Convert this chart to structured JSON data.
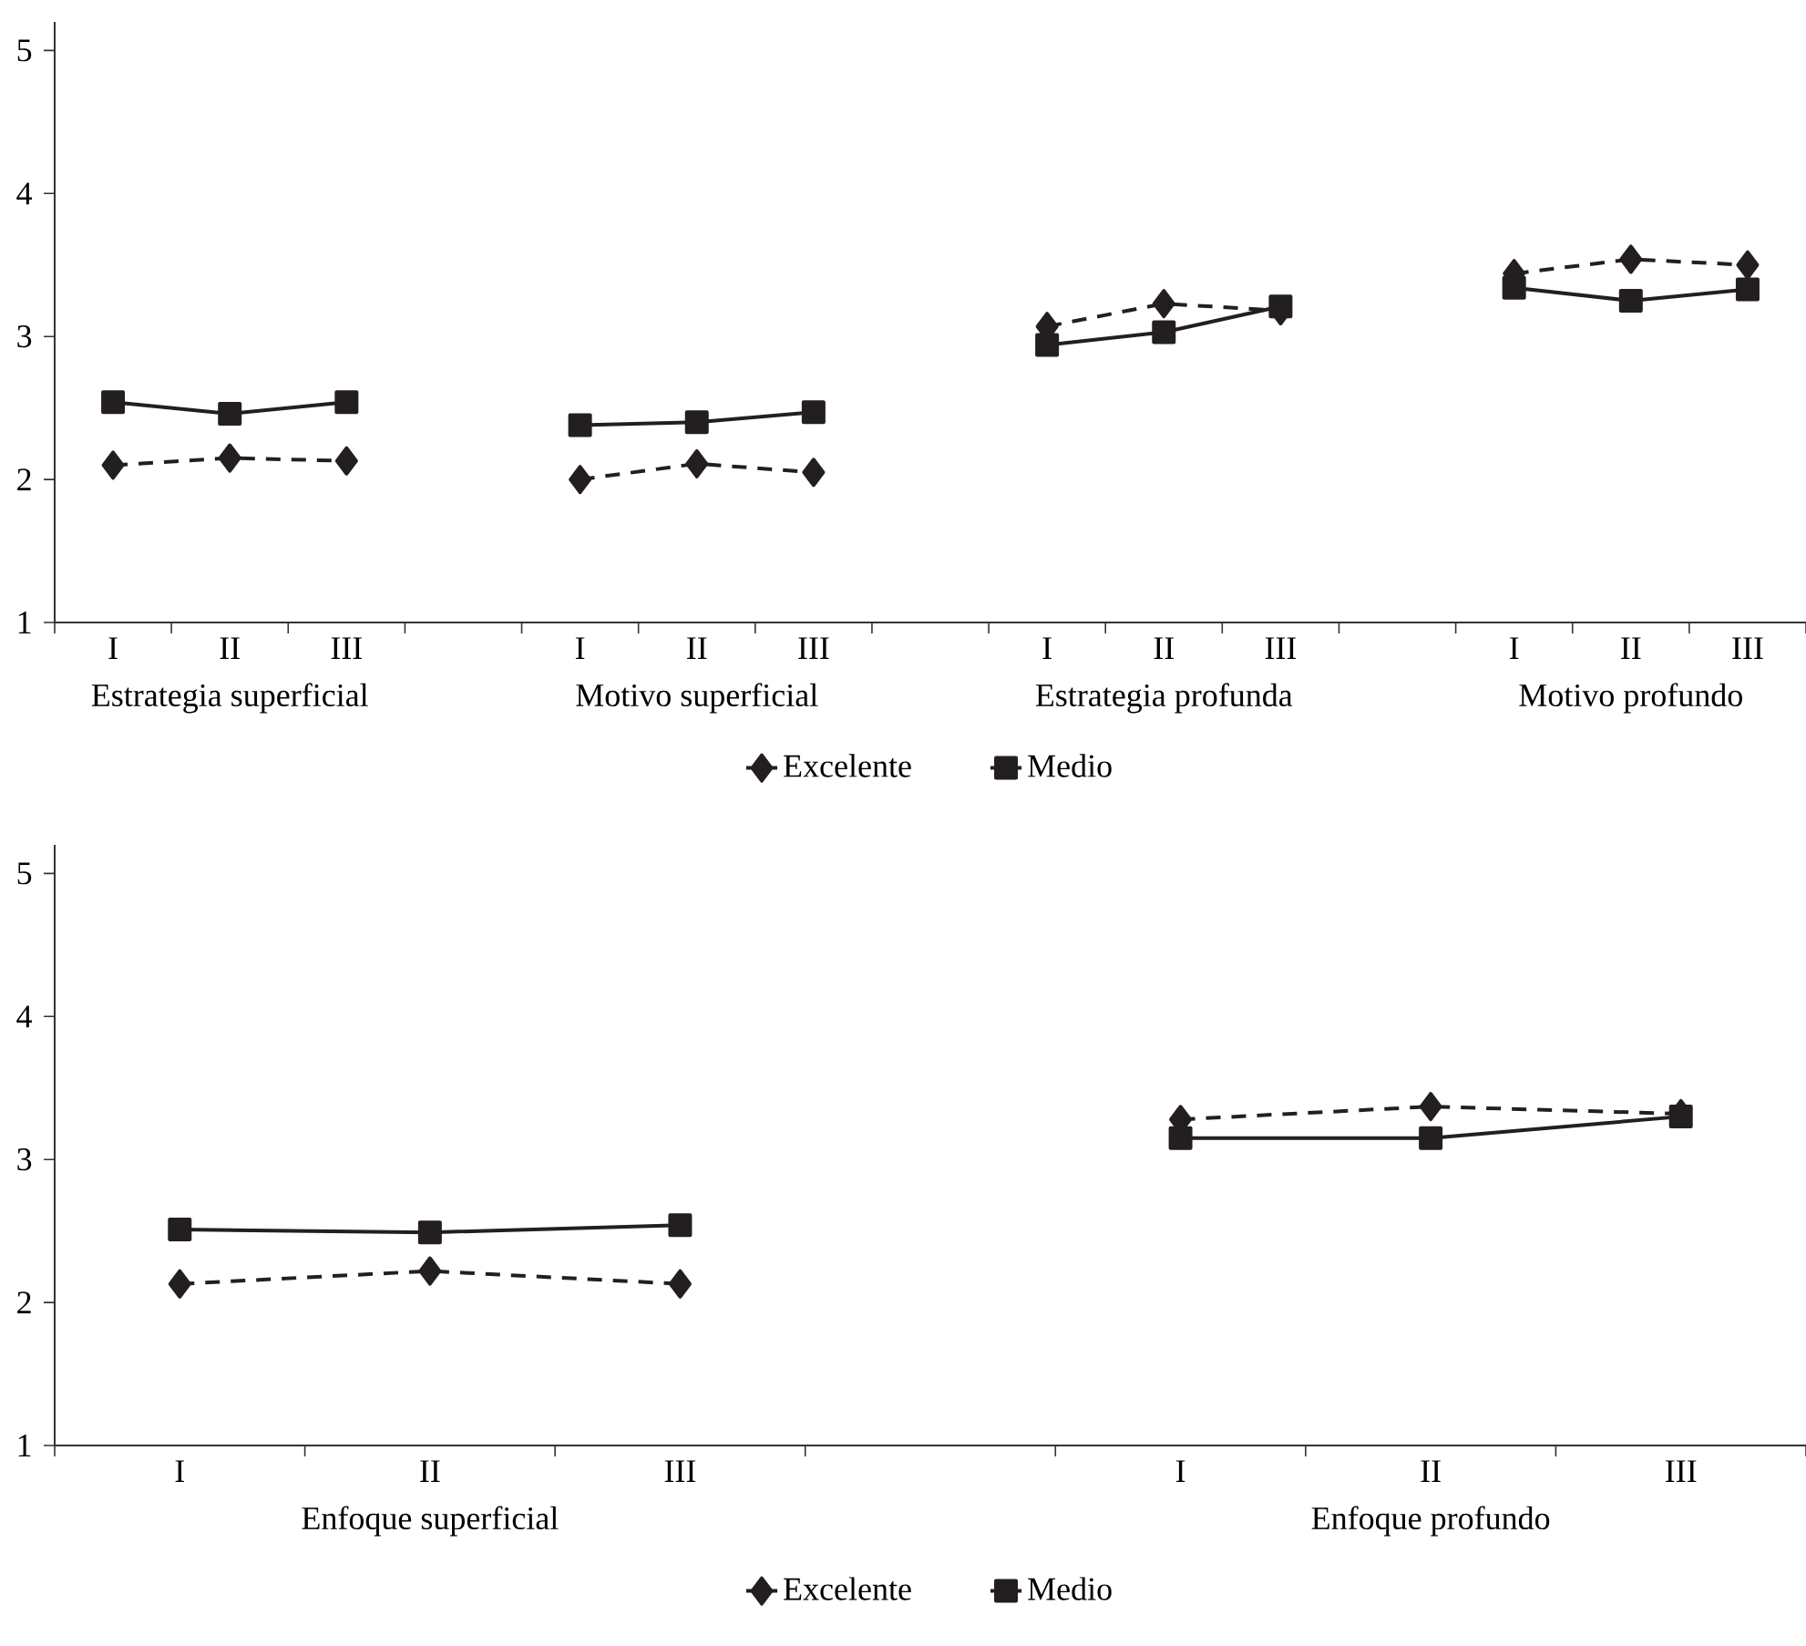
{
  "chart_data": [
    {
      "type": "line",
      "categories": [
        "I",
        "II",
        "III",
        null,
        "I",
        "II",
        "III",
        null,
        "I",
        "II",
        "III",
        null,
        "I",
        "II",
        "III"
      ],
      "ylim": [
        1,
        5.2
      ],
      "yticks": [
        1,
        2,
        3,
        4,
        5
      ],
      "legend": "bottom",
      "annotations": [
        "Estrategia superficial",
        "Motivo superficial",
        "Estrategia profunda",
        "Motivo profundo"
      ],
      "series": [
        {
          "name": "Excelente",
          "color": "#231f20",
          "marker": "diamond",
          "line_style": "dashed",
          "values": [
            2.1,
            2.15,
            2.13,
            null,
            2.0,
            2.11,
            2.05,
            null,
            3.07,
            3.23,
            3.18,
            null,
            3.44,
            3.54,
            3.5
          ]
        },
        {
          "name": "Medio",
          "color": "#231f20",
          "marker": "square",
          "line_style": "solid",
          "values": [
            2.54,
            2.46,
            2.54,
            null,
            2.38,
            2.4,
            2.47,
            null,
            2.94,
            3.03,
            3.21,
            null,
            3.34,
            3.25,
            3.33
          ]
        }
      ]
    },
    {
      "type": "line",
      "categories": [
        "I",
        "II",
        "III",
        null,
        "I",
        "II",
        "III"
      ],
      "ylim": [
        1,
        5.2
      ],
      "yticks": [
        1,
        2,
        3,
        4,
        5
      ],
      "legend": "bottom",
      "annotations": [
        "Enfoque superficial",
        "Enfoque profundo"
      ],
      "series": [
        {
          "name": "Excelente",
          "color": "#231f20",
          "marker": "diamond",
          "line_style": "dashed",
          "values": [
            2.13,
            2.22,
            2.13,
            null,
            3.28,
            3.37,
            3.32
          ]
        },
        {
          "name": "Medio",
          "color": "#231f20",
          "marker": "square",
          "line_style": "solid",
          "values": [
            2.51,
            2.49,
            2.54,
            null,
            3.15,
            3.15,
            3.3
          ]
        }
      ]
    }
  ]
}
